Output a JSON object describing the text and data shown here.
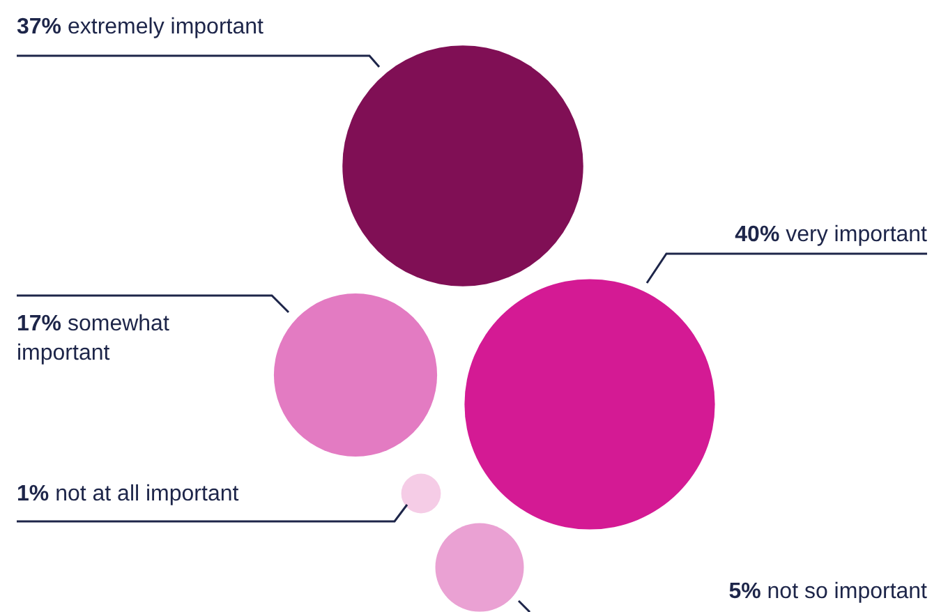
{
  "chart_data": {
    "type": "other",
    "categories": [
      "extremely important",
      "very important",
      "somewhat important",
      "not at all important",
      "not so important"
    ],
    "values": [
      37,
      40,
      17,
      1,
      5
    ],
    "value_labels": [
      "37%",
      "40%",
      "17%",
      "1%",
      "5%"
    ],
    "colors": [
      "#800f55",
      "#d41a94",
      "#e37bc2",
      "#f5cce6",
      "#eaa1d3"
    ]
  }
}
